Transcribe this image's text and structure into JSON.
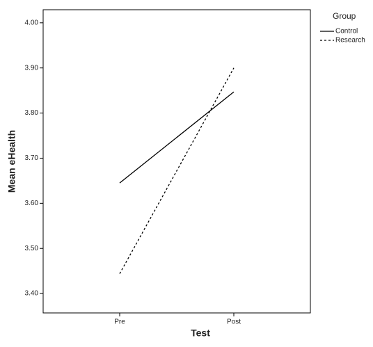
{
  "chart_data": {
    "type": "line",
    "x_label": "Test",
    "y_label": "Mean eHealth",
    "categories": [
      "Pre",
      "Post"
    ],
    "series": [
      {
        "name": "Control",
        "color": "#000000",
        "style": "solid",
        "values": [
          3.645,
          3.847
        ]
      },
      {
        "name": "Research",
        "color": "#000000",
        "style": "dotted",
        "values": [
          3.444,
          3.9
        ]
      }
    ],
    "legend_title": "Group",
    "legend": "right",
    "ylim": [
      3.357,
      4.029
    ],
    "yticks": [
      {
        "value": 3.4,
        "label": "3.40"
      },
      {
        "value": 3.5,
        "label": "3.50"
      },
      {
        "value": 3.6,
        "label": "3.60"
      },
      {
        "value": 3.7,
        "label": "3.70"
      },
      {
        "value": 3.8,
        "label": "3.80"
      },
      {
        "value": 3.9,
        "label": "3.90"
      },
      {
        "value": 4.0,
        "label": "4.00"
      }
    ],
    "grid": false
  }
}
